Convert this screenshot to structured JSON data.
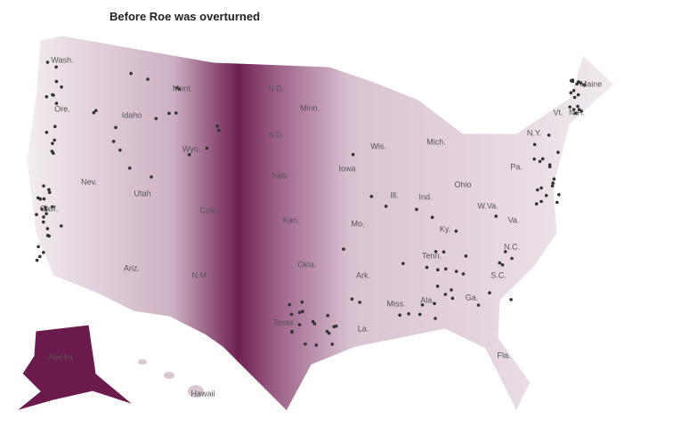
{
  "title": "Before Roe was overturned",
  "labels": [
    "Wash.",
    "Ore.",
    "Calif.",
    "Nev.",
    "Utah",
    "Ariz.",
    "Idaho",
    "Mont.",
    "Wyo.",
    "Colo.",
    "N.M.",
    "N.D.",
    "S.D.",
    "Neb.",
    "Kan.",
    "Okla.",
    "Texas",
    "Minn.",
    "Iowa",
    "Mo.",
    "Ark.",
    "La.",
    "Wis.",
    "Ill.",
    "Ind.",
    "Mich.",
    "Ohio",
    "Ky.",
    "Tenn.",
    "Miss.",
    "Ala.",
    "Ga.",
    "Fla.",
    "S.C.",
    "N.C.",
    "Va.",
    "W.Va.",
    "Pa.",
    "N.Y.",
    "Maine",
    "Vt.",
    "N.H.",
    "Alaska",
    "Hawaii"
  ]
}
